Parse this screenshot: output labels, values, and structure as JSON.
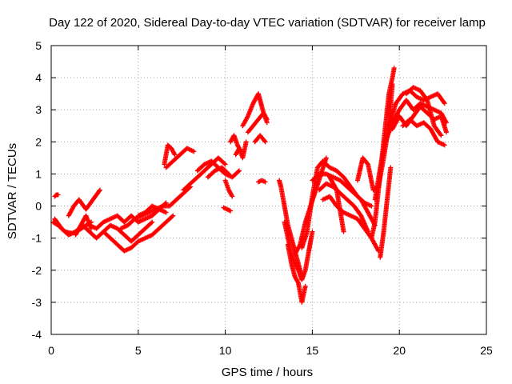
{
  "chart_data": {
    "type": "scatter",
    "title": "Day 122 of 2020, Sidereal Day-to-day VTEC variation (SDTVAR) for receiver lamp",
    "xlabel": "GPS time / hours",
    "ylabel": "SDTVAR / TECUs",
    "xlim": [
      0,
      25
    ],
    "ylim": [
      -4,
      5
    ],
    "xticks": [
      0,
      5,
      10,
      15,
      20,
      25
    ],
    "yticks": [
      -4,
      -3,
      -2,
      -1,
      0,
      1,
      2,
      3,
      4,
      5
    ],
    "grid": true,
    "marker": "+",
    "color": "#ff0000",
    "series": [
      {
        "x": [
          0.1,
          0.4,
          0.8,
          1.2,
          1.6,
          2.0,
          2.3
        ],
        "y": [
          -0.5,
          -0.6,
          -0.8,
          -0.85,
          -0.75,
          -0.6,
          -0.5
        ]
      },
      {
        "x": [
          0.2,
          0.6,
          1.0,
          1.4,
          1.8,
          2.2,
          2.6,
          3.0,
          3.4,
          3.8,
          4.2,
          4.6,
          5.0,
          5.4,
          5.8
        ],
        "y": [
          -0.4,
          -0.7,
          -0.9,
          -0.8,
          -0.6,
          -0.8,
          -1.0,
          -0.8,
          -0.6,
          -0.7,
          -0.9,
          -1.1,
          -0.9,
          -0.7,
          -0.5
        ]
      },
      {
        "x": [
          0.2,
          0.3,
          0.4
        ],
        "y": [
          0.3,
          0.35,
          0.35
        ]
      },
      {
        "x": [
          1.0,
          1.3,
          1.6,
          2.0,
          2.4,
          2.8
        ],
        "y": [
          -0.3,
          0.0,
          0.2,
          -0.1,
          0.2,
          0.5
        ]
      },
      {
        "x": [
          1.4,
          1.7,
          2.0,
          2.3
        ],
        "y": [
          -0.9,
          -0.6,
          -0.3,
          -0.7
        ]
      },
      {
        "x": [
          2.2,
          2.6,
          3.0,
          3.4,
          3.8,
          4.2,
          4.6,
          5.0,
          5.4,
          5.8,
          6.2,
          6.6
        ],
        "y": [
          -0.6,
          -0.7,
          -0.5,
          -0.4,
          -0.3,
          -0.5,
          -0.3,
          -0.5,
          -0.4,
          -0.3,
          -0.1,
          0.1
        ]
      },
      {
        "x": [
          3.0,
          3.4,
          3.8,
          4.2,
          4.6,
          5.0,
          5.4,
          5.8,
          6.2,
          6.6,
          7.0
        ],
        "y": [
          -0.8,
          -1.0,
          -1.2,
          -1.4,
          -1.3,
          -1.1,
          -1.0,
          -0.9,
          -0.7,
          -0.5,
          -0.3
        ]
      },
      {
        "x": [
          4.0,
          4.4,
          4.8,
          5.2,
          5.6,
          6.0,
          6.4,
          6.8,
          7.2,
          7.6,
          8.0
        ],
        "y": [
          -0.7,
          -0.6,
          -0.4,
          -0.3,
          -0.2,
          -0.1,
          0.0,
          0.0,
          0.2,
          0.4,
          0.6
        ]
      },
      {
        "x": [
          5.0,
          5.4,
          5.8,
          6.2,
          6.6
        ],
        "y": [
          -0.3,
          -0.2,
          0.0,
          -0.1,
          -0.2
        ]
      },
      {
        "x": [
          6.5,
          6.7,
          6.9,
          7.1
        ],
        "y": [
          1.3,
          1.9,
          1.8,
          1.6
        ]
      },
      {
        "x": [
          6.6,
          7.0,
          7.4,
          7.8,
          8.2
        ],
        "y": [
          1.2,
          1.4,
          1.6,
          1.8,
          1.7
        ]
      },
      {
        "x": [
          7.6,
          8.0,
          8.4,
          8.8,
          9.2,
          9.6,
          10.0
        ],
        "y": [
          0.5,
          0.7,
          0.9,
          1.1,
          1.3,
          1.5,
          1.3
        ]
      },
      {
        "x": [
          8.4,
          8.8,
          9.2,
          9.6,
          10.0,
          10.4,
          10.8
        ],
        "y": [
          1.1,
          1.3,
          1.4,
          1.2,
          1.0,
          0.9,
          1.1
        ]
      },
      {
        "x": [
          9.0,
          9.4,
          9.8,
          10.2
        ],
        "y": [
          0.9,
          1.1,
          1.2,
          1.0
        ]
      },
      {
        "x": [
          10.0,
          10.2,
          10.4
        ],
        "y": [
          0.8,
          0.5,
          0.3
        ]
      },
      {
        "x": [
          9.9,
          10.1,
          10.3
        ],
        "y": [
          -0.05,
          -0.1,
          -0.15
        ]
      },
      {
        "x": [
          10.3,
          10.5,
          10.7,
          10.9
        ],
        "y": [
          2.0,
          2.2,
          1.9,
          1.7
        ]
      },
      {
        "x": [
          10.6,
          10.8,
          11.0,
          11.2
        ],
        "y": [
          1.6,
          1.8,
          1.5,
          2.0
        ]
      },
      {
        "x": [
          11.0,
          11.3,
          11.6,
          11.9,
          12.2,
          12.4
        ],
        "y": [
          2.5,
          2.8,
          3.2,
          3.5,
          2.9,
          2.6
        ]
      },
      {
        "x": [
          11.3,
          11.6,
          11.9,
          12.2,
          12.4
        ],
        "y": [
          2.3,
          2.5,
          2.7,
          2.9,
          2.7
        ]
      },
      {
        "x": [
          11.7,
          12.0,
          12.3
        ],
        "y": [
          2.0,
          2.2,
          2.0
        ]
      },
      {
        "x": [
          11.9,
          12.1,
          12.3
        ],
        "y": [
          0.75,
          0.8,
          0.75
        ]
      },
      {
        "x": [
          13.1,
          13.2,
          13.3,
          13.4,
          13.5,
          13.6,
          13.8,
          14.0,
          14.2,
          14.4
        ],
        "y": [
          0.8,
          0.6,
          0.3,
          0.0,
          -0.3,
          -0.6,
          -1.0,
          -1.4,
          -1.8,
          -2.2
        ]
      },
      {
        "x": [
          13.4,
          13.6,
          13.8,
          14.0,
          14.2,
          14.4,
          14.6,
          14.8,
          15.0
        ],
        "y": [
          -0.5,
          -1.0,
          -1.5,
          -1.8,
          -2.0,
          -2.3,
          -2.0,
          -1.4,
          -0.8
        ]
      },
      {
        "x": [
          13.6,
          13.8,
          14.0,
          14.2,
          14.4,
          14.6
        ],
        "y": [
          -1.2,
          -1.8,
          -2.2,
          -2.4,
          -3.0,
          -2.5
        ]
      },
      {
        "x": [
          14.0,
          14.3,
          14.6,
          14.9,
          15.2,
          15.5,
          15.8
        ],
        "y": [
          -1.5,
          -1.2,
          -0.5,
          0.0,
          0.5,
          1.0,
          1.5
        ]
      },
      {
        "x": [
          14.4,
          14.7,
          15.0,
          15.3,
          15.6,
          16.0,
          16.4,
          16.8,
          17.2,
          17.6,
          18.0,
          18.4
        ],
        "y": [
          -1.3,
          -0.8,
          0.3,
          1.2,
          1.4,
          1.2,
          1.1,
          0.9,
          0.6,
          0.3,
          0.1,
          0.0
        ]
      },
      {
        "x": [
          15.0,
          15.4,
          15.8,
          16.2,
          16.6,
          17.0,
          17.4,
          17.8,
          18.2,
          18.6
        ],
        "y": [
          0.8,
          1.0,
          1.0,
          0.9,
          0.8,
          0.6,
          0.4,
          0.2,
          -0.2,
          -0.6
        ]
      },
      {
        "x": [
          15.4,
          15.8,
          16.2,
          16.6,
          17.0,
          17.4,
          17.8,
          18.2
        ],
        "y": [
          0.5,
          0.7,
          0.6,
          0.4,
          0.2,
          0.0,
          -0.3,
          -0.8
        ]
      },
      {
        "x": [
          15.6,
          16.0,
          16.4,
          16.8,
          17.2,
          17.6,
          18.0,
          18.4,
          18.8
        ],
        "y": [
          0.2,
          0.3,
          0.0,
          -0.2,
          -0.3,
          -0.4,
          -0.7,
          -1.0,
          -1.4
        ]
      },
      {
        "x": [
          16.0,
          16.4,
          16.8
        ],
        "y": [
          0.9,
          0.5,
          -0.8
        ]
      },
      {
        "x": [
          17.6,
          17.9,
          18.2,
          18.5,
          18.8,
          19.1,
          19.4,
          19.6
        ],
        "y": [
          0.8,
          1.5,
          1.3,
          0.5,
          0.6,
          1.5,
          2.5,
          3.8
        ]
      },
      {
        "x": [
          18.4,
          18.6,
          18.8,
          19.0,
          19.2,
          19.4,
          19.6,
          19.7
        ],
        "y": [
          -1.0,
          -0.5,
          0.5,
          1.5,
          2.5,
          3.5,
          4.0,
          4.3
        ]
      },
      {
        "x": [
          18.9,
          19.1,
          19.3,
          19.5
        ],
        "y": [
          -1.6,
          -0.8,
          0.2,
          1.2
        ]
      },
      {
        "x": [
          18.6,
          19.0,
          19.4,
          19.8,
          20.2,
          20.6,
          21.0,
          21.4,
          21.8,
          22.2,
          22.6
        ],
        "y": [
          0.2,
          1.5,
          2.5,
          3.2,
          3.5,
          3.6,
          3.4,
          3.3,
          3.4,
          3.5,
          3.2
        ]
      },
      {
        "x": [
          19.2,
          19.6,
          20.0,
          20.4,
          20.8,
          21.2,
          21.6,
          22.0,
          22.4,
          22.7
        ],
        "y": [
          2.0,
          2.6,
          3.0,
          3.3,
          3.0,
          3.2,
          3.1,
          3.0,
          2.9,
          2.6
        ]
      },
      {
        "x": [
          19.6,
          20.0,
          20.4,
          20.8,
          21.2,
          21.6,
          22.0,
          22.4,
          22.7
        ],
        "y": [
          2.4,
          2.8,
          2.5,
          2.8,
          3.1,
          2.9,
          2.7,
          2.8,
          2.3
        ]
      },
      {
        "x": [
          20.2,
          20.6,
          21.0,
          21.4,
          21.8,
          22.2,
          22.6
        ],
        "y": [
          2.5,
          2.7,
          2.5,
          2.6,
          2.4,
          2.0,
          1.9
        ]
      },
      {
        "x": [
          20.4,
          20.8,
          21.2,
          21.6,
          22.0,
          22.4
        ],
        "y": [
          3.5,
          3.7,
          3.6,
          3.3,
          2.5,
          2.2
        ]
      }
    ]
  }
}
